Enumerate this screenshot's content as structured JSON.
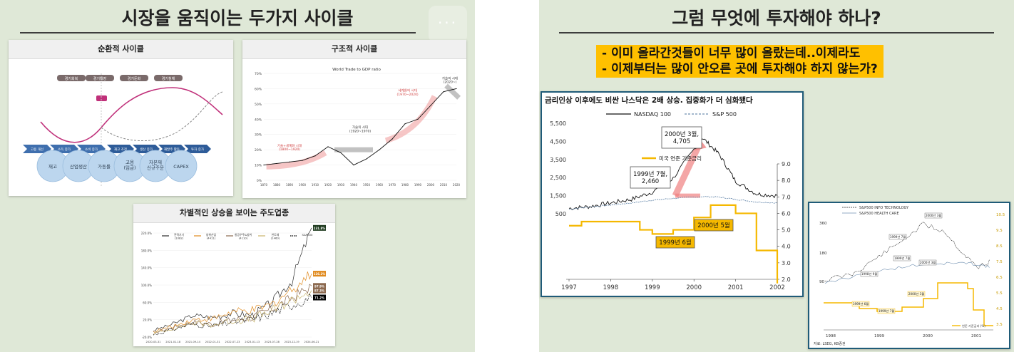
{
  "left_slide": {
    "title": "시장을 움직이는 두가지 사이클",
    "panel_cyclical": {
      "title": "순환적 사이클",
      "phases": [
        "경기회복",
        "경기확장",
        "경기둔화",
        "경기침체"
      ],
      "arrows_top": [
        "고용 개선",
        "소득 증가",
        "소비 증가"
      ],
      "arrows_bottom": [
        "재고 조정",
        "생산 증가",
        "재발주 활동",
        "투자 증가"
      ],
      "circles": [
        "재고",
        "산업생산",
        "가동률",
        "고용\n(임금)",
        "자본재\n신규주문",
        "CAPEX"
      ]
    },
    "panel_structural": {
      "title": "구조적 사이클",
      "chart_title": "World Trade to GDP ratio",
      "annotations": [
        "기술+세계화 시대\n(1800~1920)",
        "가술의 시대\n(1920~1970)",
        "세계화의 시대\n(1970~2020)",
        "가술의 시대\n(2020~)"
      ],
      "chart_data": {
        "type": "line",
        "title": "World Trade to GDP ratio",
        "x": [
          1870,
          1880,
          1890,
          1900,
          1910,
          1920,
          1930,
          1940,
          1950,
          1960,
          1970,
          1980,
          1990,
          2000,
          2010,
          2020
        ],
        "x_ticks": [
          "1870",
          "1880",
          "1890",
          "1900",
          "1910",
          "1920",
          "1930",
          "1940",
          "1950",
          "1960",
          "1970",
          "1980",
          "1990",
          "2000",
          "2010",
          "2020"
        ],
        "y": [
          10,
          11,
          12,
          13,
          16,
          22,
          18,
          10,
          14,
          20,
          27,
          37,
          40,
          49,
          58,
          60
        ],
        "y_ticks": [
          "0%",
          "10%",
          "20%",
          "30%",
          "40%",
          "50%",
          "60%",
          "70%"
        ],
        "ylim": [
          0,
          70
        ]
      }
    },
    "panel_leaders": {
      "title": "차별적인 상승을 보이는 주도업종",
      "legend": [
        "전력기기\n(1082)",
        "방위산업\n(4411)",
        "항공우주&방위\n(4110)",
        "반도체\n(1460)",
        "S&P500"
      ],
      "end_labels": [
        "231.8%",
        "126.2%",
        "97.9%",
        "87.3%",
        "71.2%"
      ],
      "series_colors": [
        "#2b2b2b",
        "#e08a1e",
        "#8c6a50",
        "#c9b46b",
        "#000000"
      ],
      "chart_data": {
        "type": "line",
        "x_ticks": [
          "2020-03-31",
          "2021-01-18",
          "2021-09-14",
          "2022-01-31",
          "2022-07-23",
          "2023-01-13",
          "2023-07-28",
          "2023-12-19",
          "2024-06-21"
        ],
        "y_ticks": [
          "-20.0%",
          "20.0%",
          "60.0%",
          "100.0%",
          "140.0%",
          "180.0%",
          "220.0%"
        ],
        "ylim": [
          -20,
          220
        ],
        "series": [
          {
            "name": "전력기기",
            "values": [
              -5,
              10,
              30,
              25,
              35,
              30,
              60,
              110,
              231.8
            ]
          },
          {
            "name": "방위산업",
            "values": [
              -8,
              5,
              20,
              22,
              38,
              40,
              55,
              90,
              126.2
            ]
          },
          {
            "name": "항공우주&방위",
            "values": [
              -10,
              2,
              15,
              10,
              20,
              25,
              45,
              70,
              97.9
            ]
          },
          {
            "name": "반도체",
            "values": [
              -12,
              0,
              12,
              8,
              18,
              22,
              40,
              65,
              87.3
            ]
          },
          {
            "name": "S&P500",
            "values": [
              -15,
              -2,
              10,
              5,
              15,
              20,
              35,
              55,
              71.2
            ]
          }
        ]
      }
    }
  },
  "right_slide": {
    "title": "그럼 무엇에 투자해야 하나?",
    "highlights": [
      "- 이미 올라간것들이 너무 많이 올랐는데..이제라도",
      "- 이제부터는 많이 안오른 곳에 투자해야 하지 않는가?"
    ],
    "main_chart": {
      "title": "금리인상 이후에도 비싼 나스닥은 2배 상승. 집중화가 더 심화됐다",
      "legend": [
        "NASDAQ 100",
        "S&P 500",
        "미국 연준 기준금리"
      ],
      "callouts": [
        "2000년 3월,\n4,705",
        "1999년 7월,\n2,460",
        "2000년 5월",
        "1999년 6월"
      ],
      "colors": {
        "nasdaq": "#111111",
        "sp500": "#6f8fb0",
        "rate": "#f5b800",
        "arrow": "#f08080"
      },
      "chart_data": {
        "type": "line",
        "x_ticks": [
          "1997",
          "1998",
          "1999",
          "2000",
          "2001",
          "2002"
        ],
        "y_left_ticks": [
          "500",
          "1,500",
          "2,500",
          "3,500",
          "4,500",
          "5,500"
        ],
        "y_right_ticks": [
          "2.0",
          "3.0",
          "4.0",
          "5.0",
          "6.0",
          "7.0",
          "8.0",
          "9.0"
        ],
        "series": [
          {
            "name": "NASDAQ 100",
            "x": [
              1997.0,
              1997.5,
              1998.0,
              1998.5,
              1999.0,
              1999.5,
              2000.2,
              2000.6,
              2001.0,
              2001.5,
              2002.0
            ],
            "values": [
              800,
              900,
              1100,
              1300,
              1700,
              2460,
              4705,
              3800,
              2300,
              1600,
              1500
            ]
          },
          {
            "name": "S&P 500",
            "x": [
              1997.0,
              1997.5,
              1998.0,
              1998.5,
              1999.0,
              1999.5,
              2000.2,
              2000.6,
              2001.0,
              2001.5,
              2002.0
            ],
            "values": [
              750,
              880,
              980,
              1100,
              1250,
              1350,
              1450,
              1420,
              1300,
              1150,
              1100
            ]
          },
          {
            "name": "미국 연준 기준금리",
            "x": [
              1997.0,
              1997.3,
              1998.7,
              1999.0,
              1999.5,
              2000.0,
              2000.4,
              2001.0,
              2001.5,
              2002.0
            ],
            "values": [
              5.25,
              5.5,
              5.0,
              4.75,
              5.0,
              5.75,
              6.5,
              6.0,
              3.75,
              1.75
            ]
          }
        ]
      }
    },
    "small_chart": {
      "legend": [
        "S&P500 INFO TECHNOLOGY",
        "S&P500 HEALTH CARE"
      ],
      "callouts": [
        "2000년 3월",
        "1999년 7월",
        "1999년 7월",
        "2000년 3월",
        "1998년 9월",
        "2000년 3월",
        "1999년 6월",
        "1999년 7월"
      ],
      "rate_label": "연준 기준금리 (%)",
      "x_ticks": [
        "1998",
        "1999",
        "2000",
        "2001"
      ],
      "y_left_ticks": [
        "90",
        "180",
        "360"
      ],
      "y_right_ticks": [
        "10.5",
        "9.5",
        "8.5",
        "7.5",
        "6.5",
        "5.5",
        "4.5",
        "3.5"
      ],
      "source": "자료: LSEG, KB증권"
    }
  }
}
